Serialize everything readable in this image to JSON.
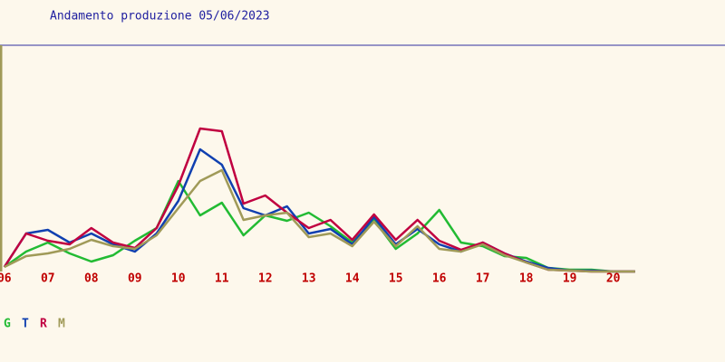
{
  "chart_data": {
    "type": "line",
    "title": "Andamento produzione 05/06/2023",
    "x": [
      6,
      6.5,
      7,
      7.5,
      8,
      8.5,
      9,
      9.5,
      10,
      10.5,
      11,
      11.5,
      12,
      12.5,
      13,
      13.5,
      14,
      14.5,
      15,
      15.5,
      16,
      16.5,
      17,
      17.5,
      18,
      18.5,
      19,
      19.5,
      20,
      20.5
    ],
    "xlim": [
      5.9,
      22.57
    ],
    "ylim": [
      0,
      250
    ],
    "xticks": [
      {
        "value": 6,
        "label": "06"
      },
      {
        "value": 7,
        "label": "07"
      },
      {
        "value": 8,
        "label": "08"
      },
      {
        "value": 9,
        "label": "09"
      },
      10,
      11,
      12,
      13,
      14,
      15,
      16,
      17,
      18,
      19,
      20
    ],
    "series": [
      {
        "name": "G",
        "color": "#22bb33",
        "values": [
          5,
          22,
          32,
          20,
          11,
          18,
          34,
          48,
          100,
          62,
          76,
          40,
          62,
          56,
          65,
          50,
          32,
          57,
          25,
          42,
          68,
          32,
          28,
          17,
          15,
          4,
          2,
          2,
          0,
          0
        ]
      },
      {
        "name": "T",
        "color": "#1040b0",
        "values": [
          5,
          42,
          46,
          32,
          42,
          30,
          22,
          42,
          78,
          135,
          118,
          70,
          62,
          72,
          42,
          47,
          30,
          60,
          30,
          47,
          30,
          22,
          32,
          20,
          11,
          4,
          1,
          1,
          0,
          0
        ]
      },
      {
        "name": "R",
        "color": "#c00040",
        "values": [
          5,
          42,
          34,
          30,
          48,
          32,
          26,
          48,
          95,
          158,
          155,
          75,
          84,
          65,
          48,
          57,
          35,
          63,
          35,
          57,
          34,
          24,
          32,
          20,
          10,
          2,
          1,
          0,
          0,
          0
        ]
      },
      {
        "name": "M",
        "color": "#a09a58",
        "values": [
          5,
          17,
          20,
          25,
          35,
          28,
          25,
          40,
          70,
          100,
          112,
          57,
          62,
          65,
          38,
          42,
          28,
          55,
          28,
          50,
          25,
          22,
          30,
          18,
          10,
          2,
          1,
          0,
          0,
          0
        ]
      }
    ]
  }
}
